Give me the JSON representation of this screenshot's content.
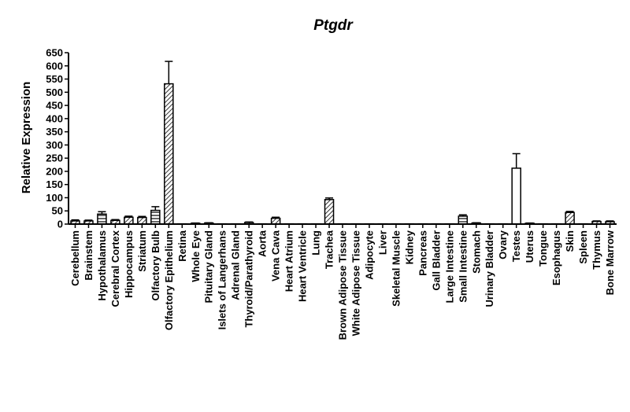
{
  "chart_data": {
    "type": "bar",
    "title": "Ptgdr",
    "xlabel": "",
    "ylabel": "Relative Expression",
    "ylim": [
      0,
      650
    ],
    "yticks": [
      0,
      50,
      100,
      150,
      200,
      250,
      300,
      350,
      400,
      450,
      500,
      550,
      600,
      650
    ],
    "grid": false,
    "categories": [
      "Cerebellum",
      "Brainstem",
      "Hypothalamus",
      "Cerebral Cortex",
      "Hippocampus",
      "Striatum",
      "Olfactory Bulb",
      "Olfactory Epithelium",
      "Retina",
      "Whole Eye",
      "Pituitary Gland",
      "Islets of Langerhans",
      "Adrenal Gland",
      "Thyroid/Parathyroid",
      "Aorta",
      "Vena Cava",
      "Heart Atrium",
      "Heart Ventricle",
      "Lung",
      "Trachea",
      "Brown Adipose Tissue",
      "White Adipose Tissue",
      "Adipocyte",
      "Liver",
      "Skeletal Muscle",
      "Kidney",
      "Pancreas",
      "Gall Bladder",
      "Large Intestine",
      "Small Intestine",
      "Stomach",
      "Urinary Bladder",
      "Ovary",
      "Testes",
      "Uterus",
      "Tongue",
      "Esophagus",
      "Skin",
      "Spleen",
      "Thymus",
      "Bone Marrow"
    ],
    "values": [
      12,
      12,
      38,
      14,
      26,
      25,
      52,
      532,
      1,
      3,
      4,
      1,
      1,
      6,
      1,
      22,
      1,
      1,
      1,
      93,
      1,
      1,
      1,
      1,
      1,
      1,
      1,
      1,
      1,
      30,
      4,
      1,
      1,
      212,
      3,
      1,
      1,
      44,
      1,
      10,
      9
    ],
    "errors": [
      4,
      3,
      9,
      3,
      4,
      4,
      14,
      85,
      0,
      1,
      1,
      0,
      0,
      2,
      0,
      4,
      0,
      0,
      0,
      6,
      0,
      0,
      0,
      0,
      0,
      0,
      0,
      0,
      0,
      5,
      1,
      0,
      0,
      55,
      1,
      0,
      0,
      4,
      0,
      2,
      3
    ],
    "patterns": [
      "hatch",
      "hatch",
      "lines",
      "hatch",
      "hatch",
      "hatch",
      "lines",
      "hatch",
      "hatch",
      "hatch",
      "hatch",
      "hatch",
      "hatch",
      "hatch",
      "hatch",
      "hatch",
      "hatch",
      "hatch",
      "hatch",
      "hatch",
      "hatch",
      "hatch",
      "hatch",
      "hatch",
      "hatch",
      "hatch",
      "hatch",
      "hatch",
      "hatch",
      "lines",
      "hatch",
      "hatch",
      "hatch",
      "empty",
      "hatch",
      "hatch",
      "hatch",
      "hatch",
      "hatch",
      "hatch",
      "hatch"
    ]
  }
}
